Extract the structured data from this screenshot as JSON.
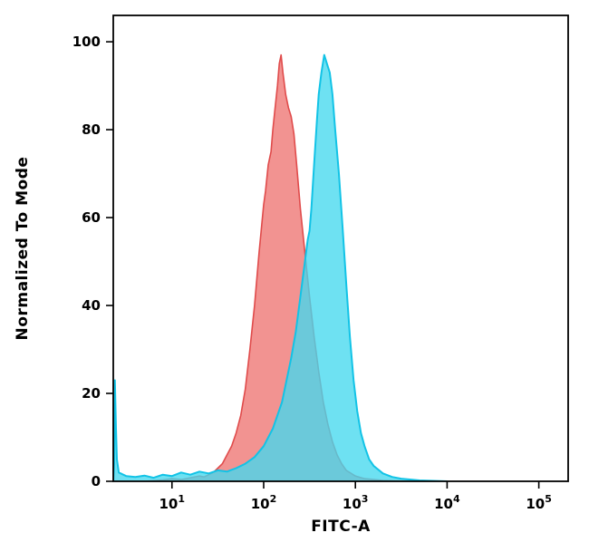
{
  "figure": {
    "background": "#ffffff",
    "axis_color": "#000000"
  },
  "chart_data": {
    "type": "area",
    "chart_kind": "flow-cytometry-histogram-overlay",
    "title": "",
    "xlabel": "FITC-A",
    "ylabel": "Normalized To Mode",
    "x_scale": "log10",
    "xlim_log10": [
      0.36,
      5.32
    ],
    "ylim": [
      0,
      106
    ],
    "x_ticks": [
      {
        "log10": 1,
        "base": "10",
        "exp": "1"
      },
      {
        "log10": 2,
        "base": "10",
        "exp": "2"
      },
      {
        "log10": 3,
        "base": "10",
        "exp": "3"
      },
      {
        "log10": 4,
        "base": "10",
        "exp": "4"
      },
      {
        "log10": 5,
        "base": "10",
        "exp": "5"
      }
    ],
    "y_ticks": [
      0,
      20,
      40,
      60,
      80,
      100
    ],
    "grid": false,
    "legend": "none",
    "series": [
      {
        "name": "red-population",
        "fill": "#F0807E",
        "fill_opacity": 0.85,
        "stroke": "#E04B4B",
        "stroke_width": 1.6,
        "points": [
          [
            0.36,
            0
          ],
          [
            0.7,
            0
          ],
          [
            0.9,
            0.3
          ],
          [
            1.0,
            0.6
          ],
          [
            1.1,
            0.4
          ],
          [
            1.2,
            0.8
          ],
          [
            1.3,
            1.2
          ],
          [
            1.35,
            1.0
          ],
          [
            1.45,
            2.0
          ],
          [
            1.5,
            3
          ],
          [
            1.55,
            4
          ],
          [
            1.6,
            6
          ],
          [
            1.65,
            8
          ],
          [
            1.7,
            11
          ],
          [
            1.75,
            15
          ],
          [
            1.8,
            21
          ],
          [
            1.85,
            30
          ],
          [
            1.9,
            40
          ],
          [
            1.95,
            52
          ],
          [
            2.0,
            63
          ],
          [
            2.02,
            66
          ],
          [
            2.05,
            72
          ],
          [
            2.08,
            75
          ],
          [
            2.1,
            80
          ],
          [
            2.12,
            84
          ],
          [
            2.15,
            90
          ],
          [
            2.17,
            95
          ],
          [
            2.19,
            97
          ],
          [
            2.21,
            93
          ],
          [
            2.24,
            88
          ],
          [
            2.27,
            85
          ],
          [
            2.3,
            83
          ],
          [
            2.33,
            79
          ],
          [
            2.36,
            72
          ],
          [
            2.4,
            62
          ],
          [
            2.45,
            52
          ],
          [
            2.5,
            42
          ],
          [
            2.55,
            33
          ],
          [
            2.6,
            25
          ],
          [
            2.65,
            18
          ],
          [
            2.7,
            13
          ],
          [
            2.75,
            9
          ],
          [
            2.8,
            6
          ],
          [
            2.85,
            4
          ],
          [
            2.9,
            2.5
          ],
          [
            3.0,
            1.2
          ],
          [
            3.1,
            0.6
          ],
          [
            3.3,
            0.2
          ],
          [
            3.6,
            0
          ]
        ]
      },
      {
        "name": "cyan-population",
        "fill": "#45D9EE",
        "fill_opacity": 0.78,
        "stroke": "#12C3E6",
        "stroke_width": 2,
        "points": [
          [
            0.36,
            0
          ],
          [
            0.37,
            4
          ],
          [
            0.378,
            23
          ],
          [
            0.39,
            12
          ],
          [
            0.4,
            5
          ],
          [
            0.42,
            2
          ],
          [
            0.5,
            1.2
          ],
          [
            0.6,
            1.0
          ],
          [
            0.7,
            1.3
          ],
          [
            0.8,
            0.8
          ],
          [
            0.9,
            1.5
          ],
          [
            1.0,
            1.2
          ],
          [
            1.1,
            2.0
          ],
          [
            1.2,
            1.5
          ],
          [
            1.3,
            2.2
          ],
          [
            1.4,
            1.8
          ],
          [
            1.5,
            2.5
          ],
          [
            1.6,
            2.2
          ],
          [
            1.7,
            3.0
          ],
          [
            1.8,
            4
          ],
          [
            1.9,
            5.5
          ],
          [
            2.0,
            8
          ],
          [
            2.1,
            12
          ],
          [
            2.2,
            18
          ],
          [
            2.3,
            28
          ],
          [
            2.35,
            34
          ],
          [
            2.4,
            42
          ],
          [
            2.45,
            50
          ],
          [
            2.48,
            55
          ],
          [
            2.5,
            57
          ],
          [
            2.52,
            62
          ],
          [
            2.55,
            72
          ],
          [
            2.58,
            82
          ],
          [
            2.6,
            88
          ],
          [
            2.63,
            93
          ],
          [
            2.66,
            97
          ],
          [
            2.69,
            95
          ],
          [
            2.72,
            93
          ],
          [
            2.75,
            88
          ],
          [
            2.78,
            80
          ],
          [
            2.82,
            70
          ],
          [
            2.86,
            58
          ],
          [
            2.9,
            45
          ],
          [
            2.94,
            33
          ],
          [
            2.98,
            23
          ],
          [
            3.02,
            16
          ],
          [
            3.06,
            11
          ],
          [
            3.1,
            8
          ],
          [
            3.15,
            5
          ],
          [
            3.2,
            3.5
          ],
          [
            3.3,
            1.8
          ],
          [
            3.4,
            1.0
          ],
          [
            3.5,
            0.6
          ],
          [
            3.7,
            0.2
          ],
          [
            4.0,
            0
          ]
        ]
      }
    ]
  }
}
